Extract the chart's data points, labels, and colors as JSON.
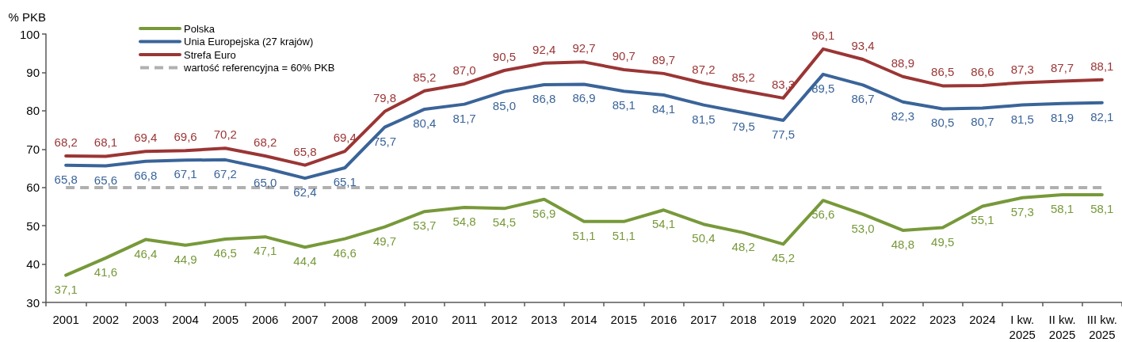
{
  "chart_data": {
    "type": "line",
    "ylabel": "% PKB",
    "categories": [
      "2001",
      "2002",
      "2003",
      "2004",
      "2005",
      "2006",
      "2007",
      "2008",
      "2009",
      "2010",
      "2011",
      "2012",
      "2013",
      "2014",
      "2015",
      "2016",
      "2017",
      "2018",
      "2019",
      "2020",
      "2021",
      "2022",
      "2023",
      "2024",
      "I kw.\n2025",
      "II kw.\n2025",
      "III kw.\n2025"
    ],
    "ylim": [
      30,
      100
    ],
    "yticks": [
      30,
      40,
      50,
      60,
      70,
      80,
      90,
      100
    ],
    "grid": false,
    "legend": "top left",
    "marker": "none",
    "line_style": "solid",
    "series": [
      {
        "name": "Polska",
        "color": "#77993a",
        "values": [
          37.1,
          41.6,
          46.4,
          44.9,
          46.5,
          47.1,
          44.4,
          46.6,
          49.7,
          53.7,
          54.8,
          54.5,
          56.9,
          51.1,
          51.1,
          54.1,
          50.4,
          48.2,
          45.2,
          56.6,
          53.0,
          48.8,
          49.5,
          55.1,
          57.3,
          58.1,
          58.1
        ],
        "value_labels": [
          "37,1",
          "41,6",
          "46,4",
          "44,9",
          "46,5",
          "47,1",
          "44,4",
          "46,6",
          "49,7",
          "53,7",
          "54,8",
          "54,5",
          "56,9",
          "51,1",
          "51,1",
          "54,1",
          "50,4",
          "48,2",
          "45,2",
          "56,6",
          "53,0",
          "48,8",
          "49,5",
          "55,1",
          "57,3",
          "58,1",
          "58,1"
        ]
      },
      {
        "name": "Unia Europejska (27 krajów)",
        "color": "#3a6499",
        "values": [
          65.8,
          65.6,
          66.8,
          67.1,
          67.2,
          65.0,
          62.4,
          65.1,
          75.7,
          80.4,
          81.7,
          85.0,
          86.8,
          86.9,
          85.1,
          84.1,
          81.5,
          79.5,
          77.5,
          89.5,
          86.7,
          82.3,
          80.5,
          80.7,
          81.5,
          81.9,
          82.1
        ],
        "value_labels": [
          "65,8",
          "65,6",
          "66,8",
          "67,1",
          "67,2",
          "65,0",
          "62,4",
          "65,1",
          "75,7",
          "80,4",
          "81,7",
          "85,0",
          "86,8",
          "86,9",
          "85,1",
          "84,1",
          "81,5",
          "79,5",
          "77,5",
          "89,5",
          "86,7",
          "82,3",
          "80,5",
          "80,7",
          "81,5",
          "81,9",
          "82,1"
        ]
      },
      {
        "name": "Strefa Euro",
        "color": "#9b3535",
        "values": [
          68.2,
          68.1,
          69.4,
          69.6,
          70.2,
          68.2,
          65.8,
          69.4,
          79.8,
          85.2,
          87.0,
          90.5,
          92.4,
          92.7,
          90.7,
          89.7,
          87.2,
          85.2,
          83.3,
          96.1,
          93.4,
          88.9,
          86.5,
          86.6,
          87.3,
          87.7,
          88.1
        ],
        "value_labels": [
          "68,2",
          "68,1",
          "69,4",
          "69,6",
          "70,2",
          "68,2",
          "65,8",
          "69,4",
          "79,8",
          "85,2",
          "87,0",
          "90,5",
          "92,4",
          "92,7",
          "90,7",
          "89,7",
          "87,2",
          "85,2",
          "83,3",
          "96,1",
          "93,4",
          "88,9",
          "86,5",
          "86,6",
          "87,3",
          "87,7",
          "88,1"
        ]
      }
    ],
    "ref_lines": [
      {
        "axis": "y",
        "value": 60,
        "label": "wartość referencyjna = 60% PKB",
        "color": "#b0b0b0",
        "line_style": "dashed"
      }
    ]
  }
}
